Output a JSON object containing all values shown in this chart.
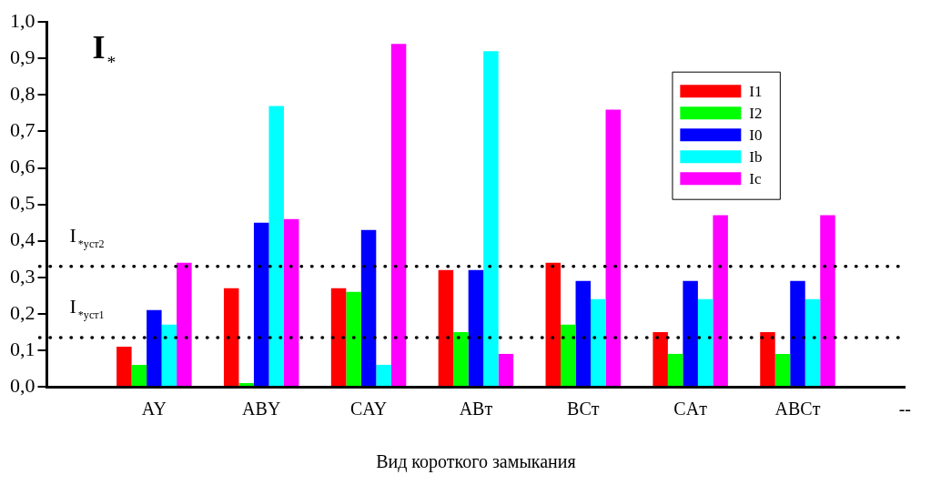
{
  "chart_data": {
    "type": "bar",
    "xlabel": "Вид короткого замыкания",
    "ylabel": "I$_{*}$",
    "categories": [
      null,
      "AY",
      "ABY",
      "CAY",
      "ABт",
      "BCт",
      "CAт",
      "ABCт",
      "--"
    ],
    "series": [
      {
        "name": "I1",
        "color": "#ff0000",
        "values": [
          null,
          0.11,
          0.27,
          0.27,
          0.32,
          0.34,
          0.15,
          0.15,
          null
        ]
      },
      {
        "name": "I2",
        "color": "#00ff00",
        "values": [
          null,
          0.06,
          0.01,
          0.26,
          0.15,
          0.17,
          0.09,
          0.09,
          null
        ]
      },
      {
        "name": "I0",
        "color": "#0000ff",
        "values": [
          null,
          0.21,
          0.45,
          0.43,
          0.32,
          0.29,
          0.29,
          0.29,
          null
        ]
      },
      {
        "name": "Ib",
        "color": "#00ffff",
        "values": [
          null,
          0.17,
          0.77,
          0.06,
          0.92,
          0.24,
          0.24,
          0.24,
          null
        ]
      },
      {
        "name": "Ic",
        "color": "#ff00ff",
        "values": [
          null,
          0.34,
          0.46,
          0.94,
          0.09,
          0.76,
          0.47,
          0.47,
          null
        ]
      }
    ],
    "ylim": [
      0,
      1
    ],
    "yticks": [
      {
        "value": 0,
        "label": "0,0"
      },
      {
        "value": 0.1,
        "label": "0,1"
      },
      {
        "value": 0.2,
        "label": "0,2"
      },
      {
        "value": 0.3,
        "label": "0,3"
      },
      {
        "value": 0.4,
        "label": "0,4"
      },
      {
        "value": 0.5,
        "label": "0,5"
      },
      {
        "value": 0.6,
        "label": "0,6"
      },
      {
        "value": 0.7,
        "label": "0,7"
      },
      {
        "value": 0.8,
        "label": "0,8"
      },
      {
        "value": 0.9,
        "label": "0,9"
      },
      {
        "value": 1,
        "label": "1,0"
      }
    ],
    "ref_lines": [
      {
        "axis": "y",
        "value": 0.135,
        "label": "I$_{*уст1}$",
        "color": "#000000",
        "line_style": "dotted"
      },
      {
        "axis": "y",
        "value": 0.33,
        "label": "I$_{*уст2}$",
        "color": "#000000",
        "line_style": "dotted"
      }
    ],
    "grid": false,
    "legend": "top right"
  }
}
